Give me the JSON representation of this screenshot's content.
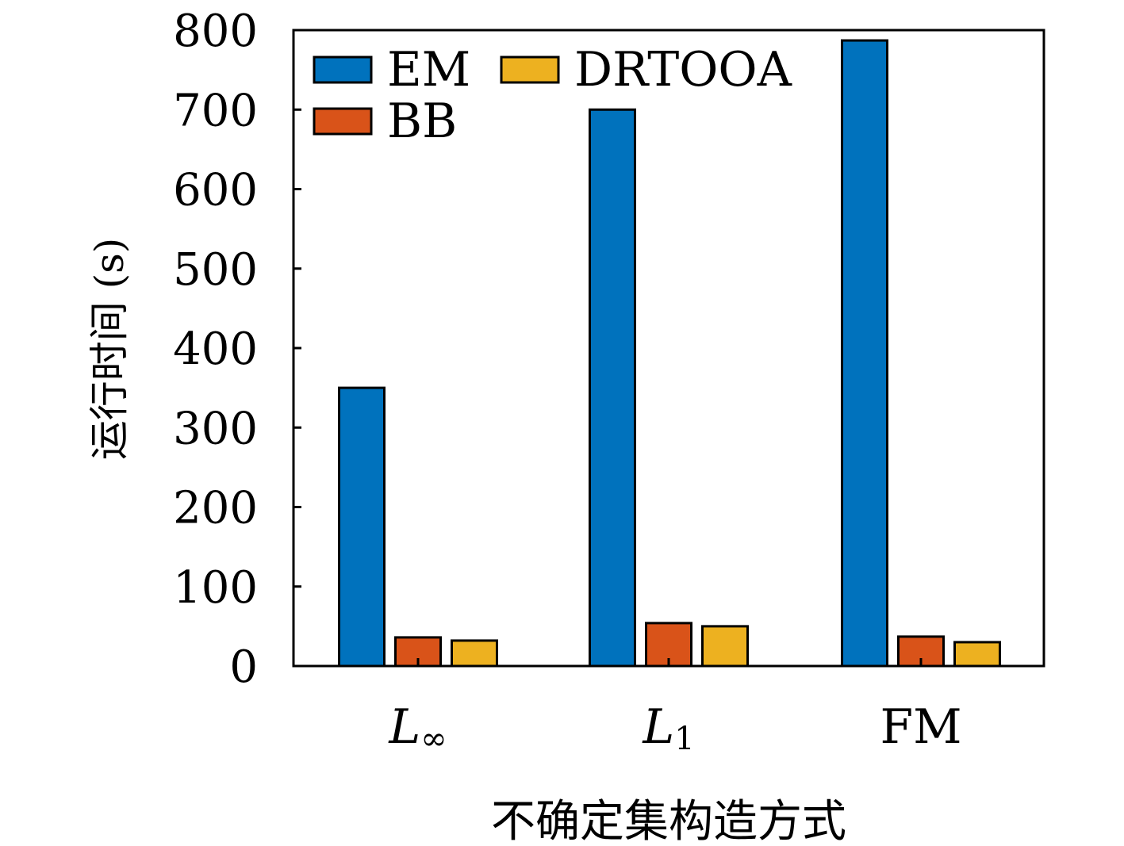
{
  "chart_data": {
    "type": "bar",
    "title": "",
    "xlabel": "不确定集构造方式",
    "ylabel": "运行时间 (s)",
    "categories": [
      {
        "main": "L",
        "sub": "∞"
      },
      {
        "main": "L",
        "sub": "1"
      },
      {
        "main": "FM",
        "sub": ""
      }
    ],
    "ylim": [
      0,
      800
    ],
    "yticks": [
      0,
      100,
      200,
      300,
      400,
      500,
      600,
      700,
      800
    ],
    "grid": false,
    "legend_position": "top-left",
    "series": [
      {
        "name": "EM",
        "color": "#0072BD",
        "values": [
          350,
          700,
          787
        ]
      },
      {
        "name": "BB",
        "color": "#D95319",
        "values": [
          36,
          54,
          37
        ]
      },
      {
        "name": "DRTOOA",
        "color": "#EDB120",
        "values": [
          32,
          50,
          30
        ]
      }
    ]
  }
}
